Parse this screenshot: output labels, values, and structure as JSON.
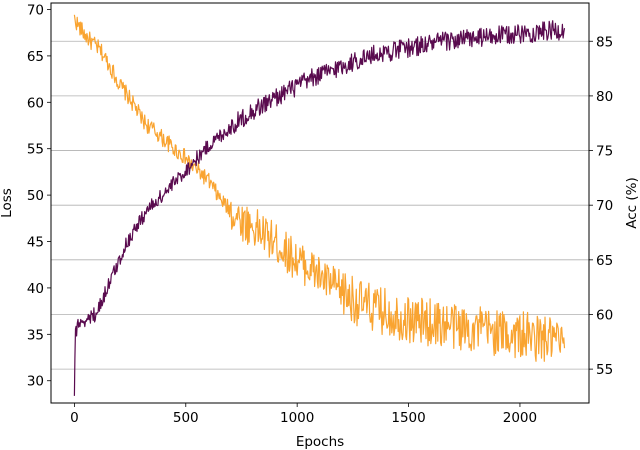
{
  "chart_data": {
    "type": "line",
    "xlabel": "Epochs",
    "ylabel_left": "Loss",
    "ylabel_right": "Acc (%)",
    "xlim": [
      -105,
      2310
    ],
    "ylim_left": [
      27.6,
      70.7
    ],
    "ylim_right": [
      51.9,
      88.5
    ],
    "x_ticks": [
      0,
      500,
      1000,
      1500,
      2000
    ],
    "y_ticks_left": [
      30,
      35,
      40,
      45,
      50,
      55,
      60,
      65,
      70
    ],
    "y_ticks_right": [
      55,
      60,
      65,
      70,
      75,
      80,
      85
    ],
    "grid": "horizontal lines at right-axis ticks",
    "legend": "none",
    "series": [
      {
        "axis": "left",
        "color": "#f9a431",
        "points": [
          [
            0,
            69
          ],
          [
            25,
            68
          ],
          [
            50,
            67.2
          ],
          [
            75,
            66.5
          ],
          [
            100,
            66
          ],
          [
            125,
            65.3
          ],
          [
            150,
            64.3
          ],
          [
            175,
            63.2
          ],
          [
            200,
            62
          ],
          [
            225,
            61.2
          ],
          [
            250,
            60.3
          ],
          [
            275,
            59.4
          ],
          [
            300,
            58.3
          ],
          [
            325,
            57.6
          ],
          [
            350,
            57.1
          ],
          [
            375,
            56.6
          ],
          [
            400,
            56
          ],
          [
            425,
            55.5
          ],
          [
            450,
            54.9
          ],
          [
            475,
            54.5
          ],
          [
            500,
            54
          ],
          [
            525,
            53.2
          ],
          [
            550,
            52.7
          ],
          [
            575,
            52.2
          ],
          [
            600,
            51.6
          ],
          [
            625,
            50.7
          ],
          [
            650,
            49.7
          ],
          [
            675,
            49
          ],
          [
            700,
            48.3
          ],
          [
            725,
            47.8
          ],
          [
            750,
            47.3
          ],
          [
            775,
            46.9
          ],
          [
            800,
            46.5
          ],
          [
            825,
            46.2
          ],
          [
            850,
            45.8
          ],
          [
            875,
            45.3
          ],
          [
            900,
            44.9
          ],
          [
            925,
            44.4
          ],
          [
            950,
            43.9
          ],
          [
            975,
            43.4
          ],
          [
            1000,
            43
          ],
          [
            1025,
            42.6
          ],
          [
            1050,
            42.2
          ],
          [
            1075,
            41.8
          ],
          [
            1100,
            41.3
          ],
          [
            1125,
            40.8
          ],
          [
            1150,
            40.4
          ],
          [
            1175,
            40
          ],
          [
            1200,
            39.6
          ],
          [
            1225,
            39.2
          ],
          [
            1250,
            38.8
          ],
          [
            1275,
            38.4
          ],
          [
            1300,
            38.1
          ],
          [
            1325,
            37.9
          ],
          [
            1350,
            37.7
          ],
          [
            1375,
            37.5
          ],
          [
            1400,
            37.4
          ],
          [
            1425,
            37.2
          ],
          [
            1450,
            37
          ],
          [
            1475,
            36.8
          ],
          [
            1500,
            36.6
          ],
          [
            1525,
            36.5
          ],
          [
            1550,
            36.4
          ],
          [
            1575,
            36.3
          ],
          [
            1600,
            36.3
          ],
          [
            1625,
            36.2
          ],
          [
            1650,
            36.1
          ],
          [
            1675,
            36
          ],
          [
            1700,
            35.9
          ],
          [
            1725,
            35.8
          ],
          [
            1750,
            35.7
          ],
          [
            1775,
            35.6
          ],
          [
            1800,
            35.6
          ],
          [
            1825,
            35.5
          ],
          [
            1850,
            35.4
          ],
          [
            1875,
            35.3
          ],
          [
            1900,
            35.2
          ],
          [
            1925,
            35.1
          ],
          [
            1950,
            35
          ],
          [
            1975,
            35
          ],
          [
            2000,
            34.9
          ],
          [
            2025,
            34.8
          ],
          [
            2050,
            34.7
          ],
          [
            2075,
            34.6
          ],
          [
            2100,
            34.5
          ],
          [
            2125,
            34.4
          ],
          [
            2150,
            34.3
          ],
          [
            2175,
            34.2
          ],
          [
            2200,
            33.5
          ]
        ]
      },
      {
        "axis": "right",
        "color": "#5a0b4f",
        "points": [
          [
            0,
            53
          ],
          [
            5,
            58
          ],
          [
            10,
            58.7
          ],
          [
            25,
            59.4
          ],
          [
            50,
            59.5
          ],
          [
            75,
            59.7
          ],
          [
            100,
            60.2
          ],
          [
            125,
            61.3
          ],
          [
            150,
            62.6
          ],
          [
            175,
            63.7
          ],
          [
            200,
            64.9
          ],
          [
            225,
            66.1
          ],
          [
            250,
            67.1
          ],
          [
            275,
            67.9
          ],
          [
            300,
            68.7
          ],
          [
            325,
            69.5
          ],
          [
            350,
            70
          ],
          [
            375,
            70.5
          ],
          [
            400,
            71
          ],
          [
            425,
            71.5
          ],
          [
            450,
            72.1
          ],
          [
            475,
            72.6
          ],
          [
            500,
            73.2
          ],
          [
            525,
            73.7
          ],
          [
            550,
            74.3
          ],
          [
            575,
            74.8
          ],
          [
            600,
            75.4
          ],
          [
            625,
            75.8
          ],
          [
            650,
            76.3
          ],
          [
            675,
            76.7
          ],
          [
            700,
            77.1
          ],
          [
            725,
            77.5
          ],
          [
            750,
            77.9
          ],
          [
            775,
            78.3
          ],
          [
            800,
            78.6
          ],
          [
            825,
            78.9
          ],
          [
            850,
            79.2
          ],
          [
            875,
            79.5
          ],
          [
            900,
            79.8
          ],
          [
            925,
            80.1
          ],
          [
            950,
            80.4
          ],
          [
            975,
            80.6
          ],
          [
            1000,
            80.9
          ],
          [
            1025,
            81.2
          ],
          [
            1050,
            81.4
          ],
          [
            1075,
            81.7
          ],
          [
            1100,
            81.9
          ],
          [
            1125,
            82.1
          ],
          [
            1150,
            82.3
          ],
          [
            1175,
            82.5
          ],
          [
            1200,
            82.7
          ],
          [
            1225,
            82.9
          ],
          [
            1250,
            83.1
          ],
          [
            1275,
            83.3
          ],
          [
            1300,
            83.5
          ],
          [
            1325,
            83.6
          ],
          [
            1350,
            83.8
          ],
          [
            1375,
            83.9
          ],
          [
            1400,
            84
          ],
          [
            1425,
            84.1
          ],
          [
            1450,
            84.2
          ],
          [
            1475,
            84.3
          ],
          [
            1500,
            84.4
          ],
          [
            1525,
            84.5
          ],
          [
            1550,
            84.6
          ],
          [
            1575,
            84.7
          ],
          [
            1600,
            84.8
          ],
          [
            1625,
            84.9
          ],
          [
            1650,
            85
          ],
          [
            1675,
            85
          ],
          [
            1700,
            85.1
          ],
          [
            1725,
            85.1
          ],
          [
            1750,
            85.2
          ],
          [
            1775,
            85.2
          ],
          [
            1800,
            85.3
          ],
          [
            1825,
            85.3
          ],
          [
            1850,
            85.4
          ],
          [
            1875,
            85.4
          ],
          [
            1900,
            85.5
          ],
          [
            1925,
            85.5
          ],
          [
            1950,
            85.6
          ],
          [
            1975,
            85.6
          ],
          [
            2000,
            85.7
          ],
          [
            2025,
            85.7
          ],
          [
            2050,
            85.8
          ],
          [
            2075,
            85.8
          ],
          [
            2100,
            85.9
          ],
          [
            2125,
            85.9
          ],
          [
            2150,
            86
          ],
          [
            2175,
            86
          ],
          [
            2200,
            86.2
          ]
        ]
      }
    ]
  }
}
